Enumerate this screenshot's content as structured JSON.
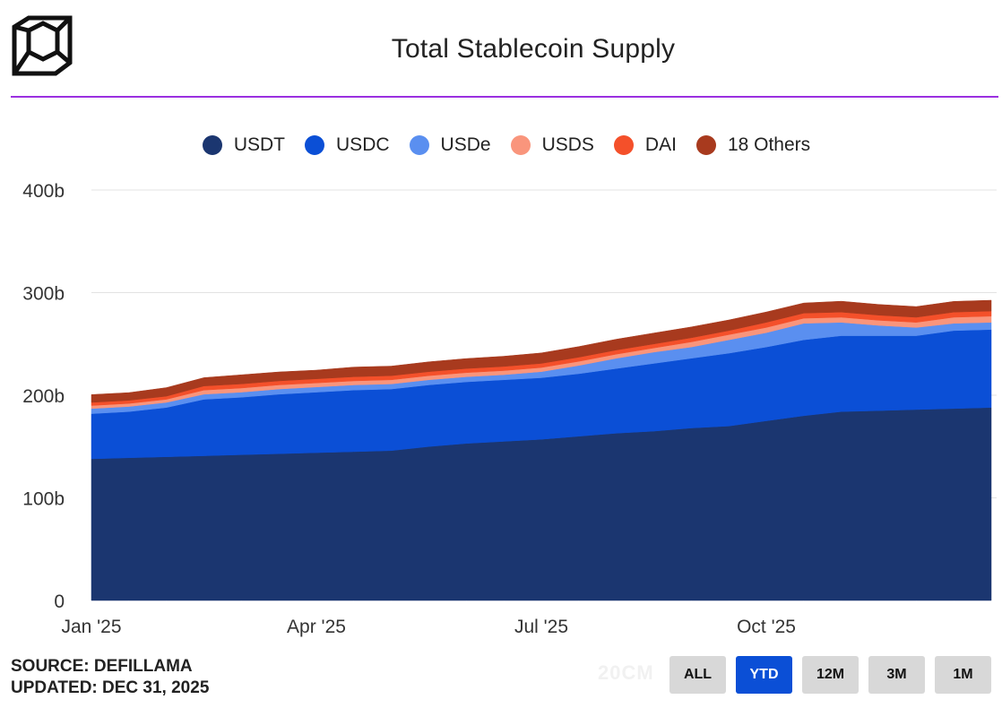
{
  "header": {
    "title": "Total Stablecoin Supply"
  },
  "footer": {
    "source": "SOURCE: DEFILLAMA",
    "updated": "UPDATED: DEC 31, 2025",
    "watermark": "20CM",
    "range_buttons": [
      {
        "label": "ALL",
        "active": false
      },
      {
        "label": "YTD",
        "active": true
      },
      {
        "label": "12M",
        "active": false
      },
      {
        "label": "3M",
        "active": false
      },
      {
        "label": "1M",
        "active": false
      }
    ]
  },
  "colors": {
    "accent_rule": "#9b30e0",
    "active_button": "#0b4fd6"
  },
  "chart_data": {
    "type": "area",
    "stacked": true,
    "title": "Total Stablecoin Supply",
    "ylim": [
      0,
      400
    ],
    "y_ticks": [
      0,
      100,
      200,
      300,
      400
    ],
    "y_tick_labels": [
      "0",
      "100b",
      "200b",
      "300b",
      "400b"
    ],
    "x_domain": [
      0,
      12
    ],
    "x_ticks": [
      0,
      3,
      6,
      9
    ],
    "x_tick_labels": [
      "Jan '25",
      "Apr '25",
      "Jul '25",
      "Oct '25"
    ],
    "x": [
      0,
      0.5,
      1,
      1.5,
      2,
      2.5,
      3,
      3.5,
      4,
      4.5,
      5,
      5.5,
      6,
      6.5,
      7,
      7.5,
      8,
      8.5,
      9,
      9.5,
      10,
      10.5,
      11,
      11.5,
      12
    ],
    "grid": true,
    "legend_position": "top-center",
    "series": [
      {
        "name": "USDT",
        "color": "#1b3670",
        "values": [
          138,
          139,
          140,
          141,
          142,
          143,
          144,
          145,
          146,
          150,
          153,
          155,
          157,
          160,
          163,
          165,
          168,
          170,
          175,
          180,
          184,
          185,
          186,
          187,
          188
        ]
      },
      {
        "name": "USDC",
        "color": "#0b4fd6",
        "values": [
          44,
          45,
          48,
          55,
          56,
          58,
          59,
          60,
          60,
          60,
          60,
          60,
          60,
          61,
          63,
          66,
          68,
          71,
          72,
          74,
          74,
          73,
          72,
          76,
          76
        ]
      },
      {
        "name": "USDe",
        "color": "#5a8ff0",
        "values": [
          5,
          5,
          5,
          5,
          5,
          5,
          5,
          5,
          5,
          5,
          5,
          5,
          6,
          8,
          10,
          11,
          11,
          13,
          14,
          16,
          13,
          10,
          8,
          7,
          7
        ]
      },
      {
        "name": "USDS",
        "color": "#f9957c",
        "values": [
          3,
          3,
          3,
          4,
          4,
          4,
          4,
          4,
          4,
          4,
          4,
          4,
          4,
          4,
          4,
          4,
          5,
          5,
          5,
          5,
          5,
          5,
          5,
          6,
          6
        ]
      },
      {
        "name": "DAI",
        "color": "#f4502a",
        "values": [
          3,
          3,
          3,
          4,
          4,
          4,
          4,
          4,
          4,
          4,
          4,
          4,
          4,
          4,
          4,
          4,
          4,
          4,
          5,
          5,
          5,
          5,
          5,
          5,
          5
        ]
      },
      {
        "name": "18 Others",
        "color": "#a83a1e",
        "values": [
          7,
          7,
          8,
          8,
          9,
          9,
          9,
          10,
          10,
          10,
          10,
          10,
          10,
          10,
          10,
          10,
          10,
          10,
          10,
          10,
          11,
          11,
          11,
          11,
          11
        ]
      }
    ]
  }
}
